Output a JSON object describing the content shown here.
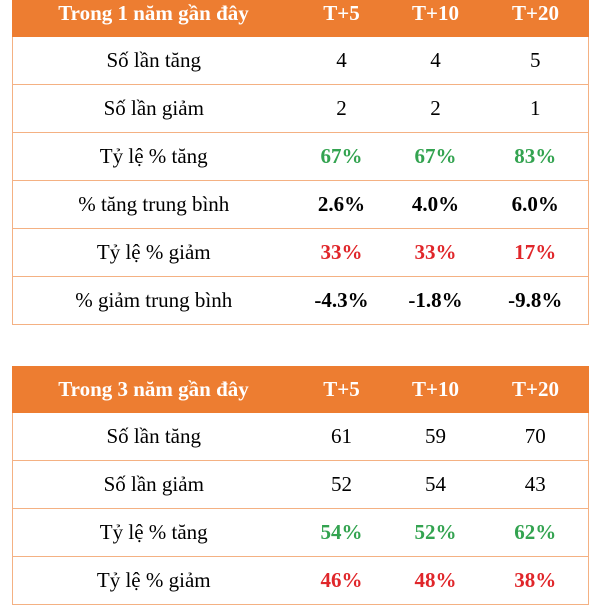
{
  "table1": {
    "header": [
      "Trong 1 năm gần đây",
      "T+5",
      "T+10",
      "T+20"
    ],
    "rows": [
      {
        "label": "Số lần tăng",
        "values": [
          "4",
          "4",
          "5"
        ],
        "style": "plain"
      },
      {
        "label": "Số lần giảm",
        "values": [
          "2",
          "2",
          "1"
        ],
        "style": "plain"
      },
      {
        "label": "Tỷ lệ % tăng",
        "values": [
          "67%",
          "67%",
          "83%"
        ],
        "style": "green"
      },
      {
        "label": "% tăng trung bình",
        "values": [
          "2.6%",
          "4.0%",
          "6.0%"
        ],
        "style": "bold"
      },
      {
        "label": "Tỷ lệ % giảm",
        "values": [
          "33%",
          "33%",
          "17%"
        ],
        "style": "red"
      },
      {
        "label": "% giảm trung bình",
        "values": [
          "-4.3%",
          "-1.8%",
          "-9.8%"
        ],
        "style": "bold"
      }
    ]
  },
  "table2": {
    "header": [
      "Trong 3 năm gần đây",
      "T+5",
      "T+10",
      "T+20"
    ],
    "rows": [
      {
        "label": "Số lần tăng",
        "values": [
          "61",
          "59",
          "70"
        ],
        "style": "plain"
      },
      {
        "label": "Số lần giảm",
        "values": [
          "52",
          "54",
          "43"
        ],
        "style": "plain"
      },
      {
        "label": "Tỷ lệ % tăng",
        "values": [
          "54%",
          "52%",
          "62%"
        ],
        "style": "green"
      },
      {
        "label": "Tỷ lệ % giảm",
        "values": [
          "46%",
          "48%",
          "38%"
        ],
        "style": "red"
      }
    ]
  },
  "colors": {
    "header_bg": "#ed7d31",
    "header_text": "#ffffff",
    "border": "#f4b183",
    "positive": "#33a350",
    "negative": "#e0262a"
  }
}
